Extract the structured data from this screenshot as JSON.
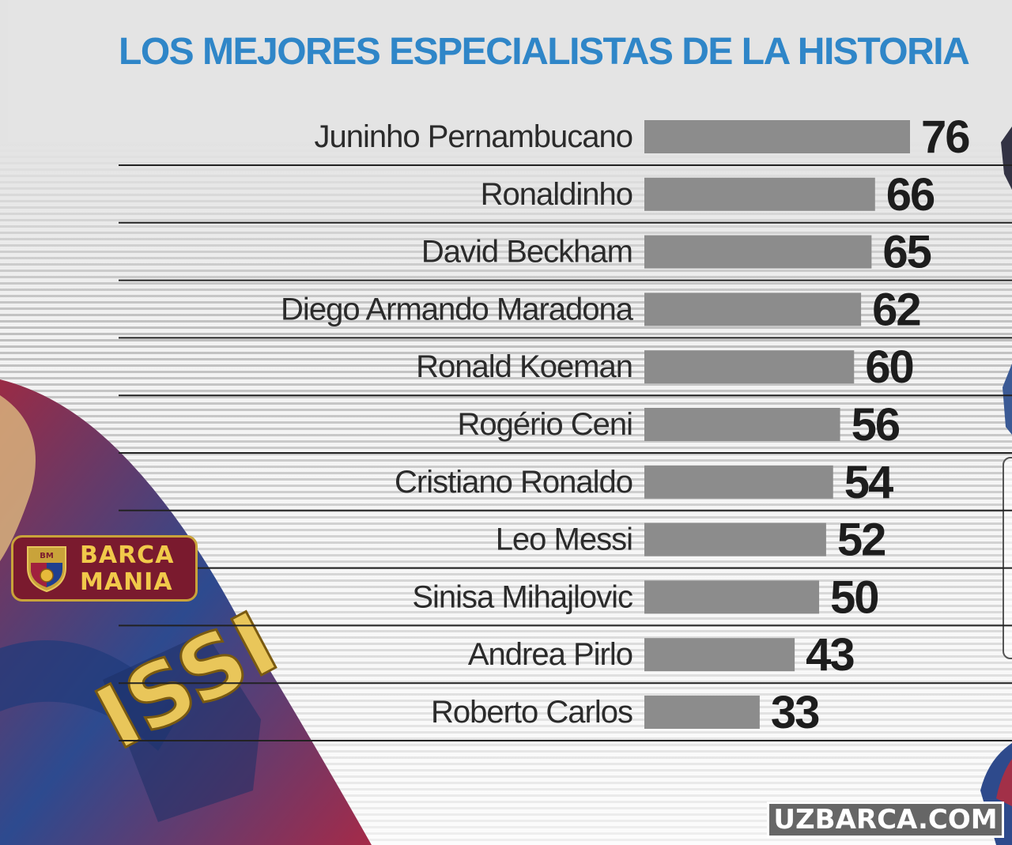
{
  "title": "LOS MEJORES ESPECIALISTAS DE LA HISTORIA",
  "chart_data": {
    "type": "bar",
    "orientation": "horizontal",
    "title": "LOS MEJORES ESPECIALISTAS DE LA HISTORIA",
    "categories": [
      "Juninho Pernambucano",
      "Ronaldinho",
      "David Beckham",
      "Diego Armando Maradona",
      "Ronald Koeman",
      "Rogério Ceni",
      "Cristiano Ronaldo",
      "Leo Messi",
      "Sinisa Mihajlovic",
      "Andrea Pirlo",
      "Roberto Carlos"
    ],
    "values": [
      76,
      66,
      65,
      62,
      60,
      56,
      54,
      52,
      50,
      43,
      33
    ],
    "data_labels": [
      "76",
      "66",
      "65",
      "62",
      "60",
      "56",
      "54",
      "52",
      "50",
      "43",
      "33"
    ],
    "bar_color": "#8c8c8c",
    "xlabel": "",
    "ylabel": "",
    "xlim": [
      0,
      76
    ],
    "grid": false,
    "legend": "none"
  },
  "logos": {
    "barca_mania_line1": "BARCA",
    "barca_mania_line2": "MANIA",
    "uzbarca": "UZBARCA.COM"
  },
  "colors": {
    "title": "#2f86c8",
    "bar": "#8c8c8c",
    "logo_barca_bg": "#7a1a2e",
    "logo_barca_text": "#f1c94a"
  }
}
